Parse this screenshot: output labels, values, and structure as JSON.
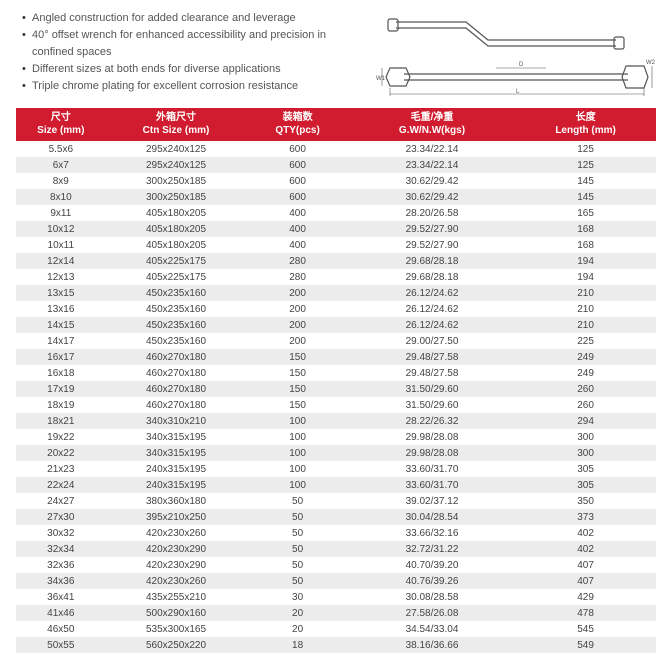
{
  "features": [
    "Angled construction for added clearance and leverage",
    "40° offset wrench for enhanced accessibility and precision in confined spaces",
    "Different sizes at both ends for diverse applications",
    "Triple chrome plating for excellent corrosion resistance"
  ],
  "diagram_labels": {
    "w1": "W1",
    "w2": "W2",
    "d": "D",
    "l": "L"
  },
  "table": {
    "header_bg": "#d01c2e",
    "header_fg": "#ffffff",
    "row_even_bg": "#ffffff",
    "row_odd_bg": "#ececec",
    "columns": [
      {
        "cn": "尺寸",
        "en": "Size (mm)"
      },
      {
        "cn": "外箱尺寸",
        "en": "Ctn Size (mm)"
      },
      {
        "cn": "装箱数",
        "en": "QTY(pcs)"
      },
      {
        "cn": "毛重/净重",
        "en": "G.W/N.W(kgs)"
      },
      {
        "cn": "长度",
        "en": "Length (mm)"
      }
    ],
    "rows": [
      [
        "5.5x6",
        "295x240x125",
        "600",
        "23.34/22.14",
        "125"
      ],
      [
        "6x7",
        "295x240x125",
        "600",
        "23.34/22.14",
        "125"
      ],
      [
        "8x9",
        "300x250x185",
        "600",
        "30.62/29.42",
        "145"
      ],
      [
        "8x10",
        "300x250x185",
        "600",
        "30.62/29.42",
        "145"
      ],
      [
        "9x11",
        "405x180x205",
        "400",
        "28.20/26.58",
        "165"
      ],
      [
        "10x12",
        "405x180x205",
        "400",
        "29.52/27.90",
        "168"
      ],
      [
        "10x11",
        "405x180x205",
        "400",
        "29.52/27.90",
        "168"
      ],
      [
        "12x14",
        "405x225x175",
        "280",
        "29.68/28.18",
        "194"
      ],
      [
        "12x13",
        "405x225x175",
        "280",
        "29.68/28.18",
        "194"
      ],
      [
        "13x15",
        "450x235x160",
        "200",
        "26.12/24.62",
        "210"
      ],
      [
        "13x16",
        "450x235x160",
        "200",
        "26.12/24.62",
        "210"
      ],
      [
        "14x15",
        "450x235x160",
        "200",
        "26.12/24.62",
        "210"
      ],
      [
        "14x17",
        "450x235x160",
        "200",
        "29.00/27.50",
        "225"
      ],
      [
        "16x17",
        "460x270x180",
        "150",
        "29.48/27.58",
        "249"
      ],
      [
        "16x18",
        "460x270x180",
        "150",
        "29.48/27.58",
        "249"
      ],
      [
        "17x19",
        "460x270x180",
        "150",
        "31.50/29.60",
        "260"
      ],
      [
        "18x19",
        "460x270x180",
        "150",
        "31.50/29.60",
        "260"
      ],
      [
        "18x21",
        "340x310x210",
        "100",
        "28.22/26.32",
        "294"
      ],
      [
        "19x22",
        "340x315x195",
        "100",
        "29.98/28.08",
        "300"
      ],
      [
        "20x22",
        "340x315x195",
        "100",
        "29.98/28.08",
        "300"
      ],
      [
        "21x23",
        "240x315x195",
        "100",
        "33.60/31.70",
        "305"
      ],
      [
        "22x24",
        "240x315x195",
        "100",
        "33.60/31.70",
        "305"
      ],
      [
        "24x27",
        "380x360x180",
        "50",
        "39.02/37.12",
        "350"
      ],
      [
        "27x30",
        "395x210x250",
        "50",
        "30.04/28.54",
        "373"
      ],
      [
        "30x32",
        "420x230x260",
        "50",
        "33.66/32.16",
        "402"
      ],
      [
        "32x34",
        "420x230x290",
        "50",
        "32.72/31.22",
        "402"
      ],
      [
        "32x36",
        "420x230x290",
        "50",
        "40.70/39.20",
        "407"
      ],
      [
        "34x36",
        "420x230x260",
        "50",
        "40.76/39.26",
        "407"
      ],
      [
        "36x41",
        "435x255x210",
        "30",
        "30.08/28.58",
        "429"
      ],
      [
        "41x46",
        "500x290x160",
        "20",
        "27.58/26.08",
        "478"
      ],
      [
        "46x50",
        "535x300x165",
        "20",
        "34.54/33.04",
        "545"
      ],
      [
        "50x55",
        "560x250x220",
        "18",
        "38.16/36.66",
        "549"
      ]
    ]
  }
}
